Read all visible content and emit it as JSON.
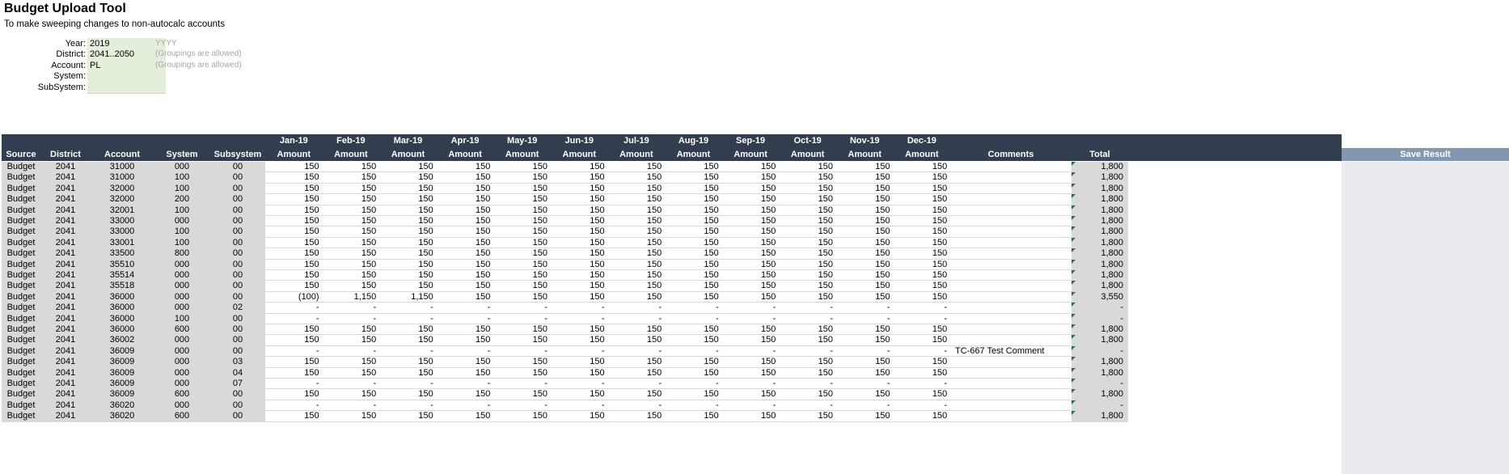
{
  "title": "Budget Upload Tool",
  "subtitle": "To make sweeping changes to non-autocalc accounts",
  "params": [
    {
      "label": "Year:",
      "value": "2019",
      "hint": "YYYY"
    },
    {
      "label": "District:",
      "value": "2041..2050",
      "hint": "(Groupings are allowed)"
    },
    {
      "label": "Account:",
      "value": "PL",
      "hint": "(Groupings are allowed)"
    },
    {
      "label": "System:",
      "value": "",
      "hint": ""
    },
    {
      "label": "SubSystem:",
      "value": "",
      "hint": ""
    }
  ],
  "headers": {
    "source": "Source",
    "district": "District",
    "account": "Account",
    "system": "System",
    "subsystem": "Subsystem",
    "months": [
      "Jan-19",
      "Feb-19",
      "Mar-19",
      "Apr-19",
      "May-19",
      "Jun-19",
      "Jul-19",
      "Aug-19",
      "Sep-19",
      "Oct-19",
      "Nov-19",
      "Dec-19"
    ],
    "amount": "Amount",
    "comments": "Comments",
    "total": "Total",
    "save": "Save Result"
  },
  "rows": [
    {
      "source": "Budget",
      "district": "2041",
      "account": "31000",
      "system": "000",
      "subsystem": "00",
      "m": [
        "150",
        "150",
        "150",
        "150",
        "150",
        "150",
        "150",
        "150",
        "150",
        "150",
        "150",
        "150"
      ],
      "comment": "",
      "total": "1,800"
    },
    {
      "source": "Budget",
      "district": "2041",
      "account": "31000",
      "system": "100",
      "subsystem": "00",
      "m": [
        "150",
        "150",
        "150",
        "150",
        "150",
        "150",
        "150",
        "150",
        "150",
        "150",
        "150",
        "150"
      ],
      "comment": "",
      "total": "1,800"
    },
    {
      "source": "Budget",
      "district": "2041",
      "account": "32000",
      "system": "100",
      "subsystem": "00",
      "m": [
        "150",
        "150",
        "150",
        "150",
        "150",
        "150",
        "150",
        "150",
        "150",
        "150",
        "150",
        "150"
      ],
      "comment": "",
      "total": "1,800"
    },
    {
      "source": "Budget",
      "district": "2041",
      "account": "32000",
      "system": "200",
      "subsystem": "00",
      "m": [
        "150",
        "150",
        "150",
        "150",
        "150",
        "150",
        "150",
        "150",
        "150",
        "150",
        "150",
        "150"
      ],
      "comment": "",
      "total": "1,800"
    },
    {
      "source": "Budget",
      "district": "2041",
      "account": "32001",
      "system": "100",
      "subsystem": "00",
      "m": [
        "150",
        "150",
        "150",
        "150",
        "150",
        "150",
        "150",
        "150",
        "150",
        "150",
        "150",
        "150"
      ],
      "comment": "",
      "total": "1,800"
    },
    {
      "source": "Budget",
      "district": "2041",
      "account": "33000",
      "system": "000",
      "subsystem": "00",
      "m": [
        "150",
        "150",
        "150",
        "150",
        "150",
        "150",
        "150",
        "150",
        "150",
        "150",
        "150",
        "150"
      ],
      "comment": "",
      "total": "1,800"
    },
    {
      "source": "Budget",
      "district": "2041",
      "account": "33000",
      "system": "100",
      "subsystem": "00",
      "m": [
        "150",
        "150",
        "150",
        "150",
        "150",
        "150",
        "150",
        "150",
        "150",
        "150",
        "150",
        "150"
      ],
      "comment": "",
      "total": "1,800"
    },
    {
      "source": "Budget",
      "district": "2041",
      "account": "33001",
      "system": "100",
      "subsystem": "00",
      "m": [
        "150",
        "150",
        "150",
        "150",
        "150",
        "150",
        "150",
        "150",
        "150",
        "150",
        "150",
        "150"
      ],
      "comment": "",
      "total": "1,800"
    },
    {
      "source": "Budget",
      "district": "2041",
      "account": "33500",
      "system": "800",
      "subsystem": "00",
      "m": [
        "150",
        "150",
        "150",
        "150",
        "150",
        "150",
        "150",
        "150",
        "150",
        "150",
        "150",
        "150"
      ],
      "comment": "",
      "total": "1,800"
    },
    {
      "source": "Budget",
      "district": "2041",
      "account": "35510",
      "system": "000",
      "subsystem": "00",
      "m": [
        "150",
        "150",
        "150",
        "150",
        "150",
        "150",
        "150",
        "150",
        "150",
        "150",
        "150",
        "150"
      ],
      "comment": "",
      "total": "1,800"
    },
    {
      "source": "Budget",
      "district": "2041",
      "account": "35514",
      "system": "000",
      "subsystem": "00",
      "m": [
        "150",
        "150",
        "150",
        "150",
        "150",
        "150",
        "150",
        "150",
        "150",
        "150",
        "150",
        "150"
      ],
      "comment": "",
      "total": "1,800"
    },
    {
      "source": "Budget",
      "district": "2041",
      "account": "35518",
      "system": "000",
      "subsystem": "00",
      "m": [
        "150",
        "150",
        "150",
        "150",
        "150",
        "150",
        "150",
        "150",
        "150",
        "150",
        "150",
        "150"
      ],
      "comment": "",
      "total": "1,800"
    },
    {
      "source": "Budget",
      "district": "2041",
      "account": "36000",
      "system": "000",
      "subsystem": "00",
      "m": [
        "(100)",
        "1,150",
        "1,150",
        "150",
        "150",
        "150",
        "150",
        "150",
        "150",
        "150",
        "150",
        "150"
      ],
      "comment": "",
      "total": "3,550"
    },
    {
      "source": "Budget",
      "district": "2041",
      "account": "36000",
      "system": "000",
      "subsystem": "02",
      "m": [
        "-",
        "-",
        "-",
        "-",
        "-",
        "-",
        "-",
        "-",
        "-",
        "-",
        "-",
        "-"
      ],
      "comment": "",
      "total": "-"
    },
    {
      "source": "Budget",
      "district": "2041",
      "account": "36000",
      "system": "100",
      "subsystem": "00",
      "m": [
        "-",
        "-",
        "-",
        "-",
        "-",
        "-",
        "-",
        "-",
        "-",
        "-",
        "-",
        "-"
      ],
      "comment": "",
      "total": "-"
    },
    {
      "source": "Budget",
      "district": "2041",
      "account": "36000",
      "system": "600",
      "subsystem": "00",
      "m": [
        "150",
        "150",
        "150",
        "150",
        "150",
        "150",
        "150",
        "150",
        "150",
        "150",
        "150",
        "150"
      ],
      "comment": "",
      "total": "1,800"
    },
    {
      "source": "Budget",
      "district": "2041",
      "account": "36002",
      "system": "000",
      "subsystem": "00",
      "m": [
        "150",
        "150",
        "150",
        "150",
        "150",
        "150",
        "150",
        "150",
        "150",
        "150",
        "150",
        "150"
      ],
      "comment": "",
      "total": "1,800"
    },
    {
      "source": "Budget",
      "district": "2041",
      "account": "36009",
      "system": "000",
      "subsystem": "00",
      "m": [
        "-",
        "-",
        "-",
        "-",
        "-",
        "-",
        "-",
        "-",
        "-",
        "-",
        "-",
        "-"
      ],
      "comment": "TC-667 Test Comment",
      "total": "-"
    },
    {
      "source": "Budget",
      "district": "2041",
      "account": "36009",
      "system": "000",
      "subsystem": "03",
      "m": [
        "150",
        "150",
        "150",
        "150",
        "150",
        "150",
        "150",
        "150",
        "150",
        "150",
        "150",
        "150"
      ],
      "comment": "",
      "total": "1,800"
    },
    {
      "source": "Budget",
      "district": "2041",
      "account": "36009",
      "system": "000",
      "subsystem": "04",
      "m": [
        "150",
        "150",
        "150",
        "150",
        "150",
        "150",
        "150",
        "150",
        "150",
        "150",
        "150",
        "150"
      ],
      "comment": "",
      "total": "1,800"
    },
    {
      "source": "Budget",
      "district": "2041",
      "account": "36009",
      "system": "000",
      "subsystem": "07",
      "m": [
        "-",
        "-",
        "-",
        "-",
        "-",
        "-",
        "-",
        "-",
        "-",
        "-",
        "-",
        "-"
      ],
      "comment": "",
      "total": "-"
    },
    {
      "source": "Budget",
      "district": "2041",
      "account": "36009",
      "system": "600",
      "subsystem": "00",
      "m": [
        "150",
        "150",
        "150",
        "150",
        "150",
        "150",
        "150",
        "150",
        "150",
        "150",
        "150",
        "150"
      ],
      "comment": "",
      "total": "1,800"
    },
    {
      "source": "Budget",
      "district": "2041",
      "account": "36020",
      "system": "000",
      "subsystem": "00",
      "m": [
        "-",
        "-",
        "-",
        "-",
        "-",
        "-",
        "-",
        "-",
        "-",
        "-",
        "-",
        "-"
      ],
      "comment": "",
      "total": "-"
    },
    {
      "source": "Budget",
      "district": "2041",
      "account": "36020",
      "system": "600",
      "subsystem": "00",
      "m": [
        "150",
        "150",
        "150",
        "150",
        "150",
        "150",
        "150",
        "150",
        "150",
        "150",
        "150",
        "150"
      ],
      "comment": "",
      "total": "1,800"
    }
  ]
}
